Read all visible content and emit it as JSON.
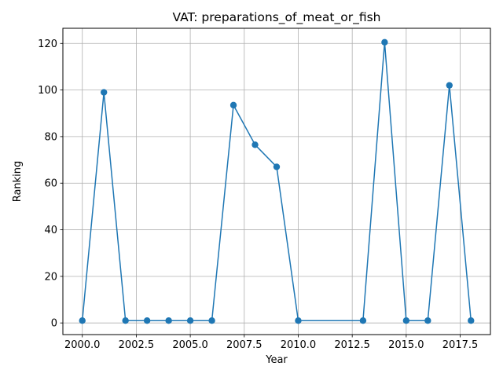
{
  "chart_data": {
    "type": "line",
    "title": "VAT: preparations_of_meat_or_fish",
    "xlabel": "Year",
    "ylabel": "Ranking",
    "xlim": [
      1999.1,
      2018.9
    ],
    "ylim": [
      -5,
      126.5
    ],
    "xticks": [
      2000.0,
      2002.5,
      2005.0,
      2007.5,
      2010.0,
      2012.5,
      2015.0,
      2017.5
    ],
    "xtick_labels": [
      "2000.0",
      "2002.5",
      "2005.0",
      "2007.5",
      "2010.0",
      "2012.5",
      "2015.0",
      "2017.5"
    ],
    "yticks": [
      0,
      20,
      40,
      60,
      80,
      100,
      120
    ],
    "ytick_labels": [
      "0",
      "20",
      "40",
      "60",
      "80",
      "100",
      "120"
    ],
    "grid": true,
    "color": "#1f77b4",
    "series": [
      {
        "x": [
          2000,
          2001,
          2002,
          2003,
          2004,
          2005,
          2006,
          2007,
          2008,
          2009,
          2010,
          2013,
          2014,
          2015,
          2016,
          2017,
          2018
        ],
        "y": [
          1,
          99,
          1,
          1,
          1,
          1,
          1,
          93.5,
          76.5,
          67,
          1,
          1,
          120.5,
          1,
          1,
          102,
          1
        ]
      }
    ]
  }
}
